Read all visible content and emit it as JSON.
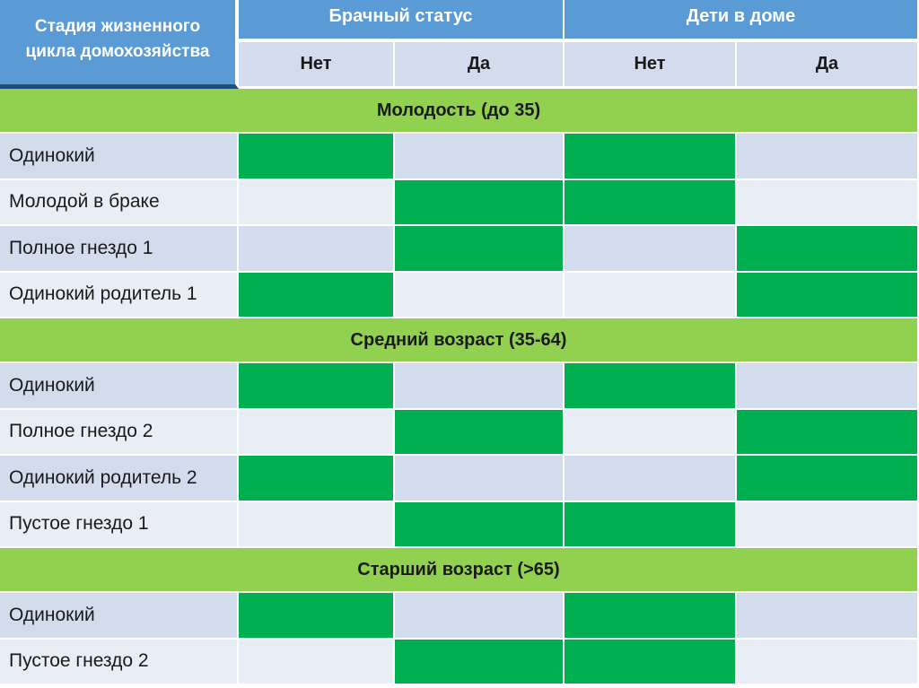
{
  "header": {
    "stage_label": "Стадия жизненного цикла домохозяйства",
    "groups": [
      {
        "label": "Брачный статус",
        "sub": [
          "Нет",
          "Да"
        ]
      },
      {
        "label": "Дети в доме",
        "sub": [
          "Нет",
          "Да"
        ]
      }
    ]
  },
  "colors": {
    "header_blue": "#5b9bd5",
    "section_green": "#92d050",
    "filled_green": "#00b050",
    "row_dark": "#d3dcec",
    "row_light": "#e9edf5"
  },
  "sections": [
    {
      "title": "Молодость (до 35)",
      "rows": [
        {
          "label": "Одинокий",
          "cells": [
            1,
            0,
            1,
            0
          ]
        },
        {
          "label": "Молодой в браке",
          "cells": [
            0,
            1,
            1,
            0
          ]
        },
        {
          "label": "Полное гнездо 1",
          "cells": [
            0,
            1,
            0,
            1
          ]
        },
        {
          "label": "Одинокий родитель 1",
          "cells": [
            1,
            0,
            0,
            1
          ]
        }
      ]
    },
    {
      "title": "Средний возраст (35-64)",
      "rows": [
        {
          "label": "Одинокий",
          "cells": [
            1,
            0,
            1,
            0
          ]
        },
        {
          "label": "Полное гнездо 2",
          "cells": [
            0,
            1,
            0,
            1
          ]
        },
        {
          "label": "Одинокий родитель 2",
          "cells": [
            1,
            0,
            0,
            1
          ]
        },
        {
          "label": "Пустое гнездо 1",
          "cells": [
            0,
            1,
            1,
            0
          ]
        }
      ]
    },
    {
      "title": "Старший возраст (>65)",
      "rows": [
        {
          "label": "Одинокий",
          "cells": [
            1,
            0,
            1,
            0
          ]
        },
        {
          "label": "Пустое гнездо 2",
          "cells": [
            0,
            1,
            1,
            0
          ]
        }
      ]
    }
  ]
}
